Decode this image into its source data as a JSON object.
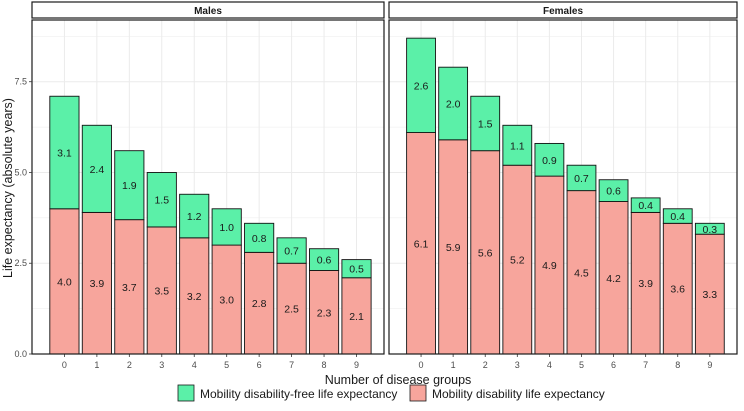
{
  "chart_data": {
    "type": "bar",
    "stacked": true,
    "xlabel": "Number of disease groups",
    "ylabel": "Life expectancy (absolute years)",
    "ylim": [
      0,
      9.2
    ],
    "yticks": [
      0.0,
      2.5,
      5.0,
      7.5
    ],
    "ytick_labels": [
      "0.0",
      "2.5",
      "5.0",
      "7.5"
    ],
    "categories": [
      "0",
      "1",
      "2",
      "3",
      "4",
      "5",
      "6",
      "7",
      "8",
      "9"
    ],
    "colors": {
      "free": "#5bf0a8",
      "disability": "#f7a59c",
      "grid": "#ebebeb",
      "bar_outline": "#111111"
    },
    "legend": {
      "position": "bottom",
      "items": [
        {
          "name": "Mobility disability-free life expectancy",
          "color": "#5bf0a8"
        },
        {
          "name": "Mobility disability life expectancy",
          "color": "#f7a59c"
        }
      ]
    },
    "panels": [
      {
        "title": "Males",
        "series": [
          {
            "name": "Mobility disability life expectancy",
            "values": [
              4.0,
              3.9,
              3.7,
              3.5,
              3.2,
              3.0,
              2.8,
              2.5,
              2.3,
              2.1
            ]
          },
          {
            "name": "Mobility disability-free life expectancy",
            "values": [
              3.1,
              2.4,
              1.9,
              1.5,
              1.2,
              1.0,
              0.8,
              0.7,
              0.6,
              0.5
            ]
          }
        ]
      },
      {
        "title": "Females",
        "series": [
          {
            "name": "Mobility disability life expectancy",
            "values": [
              6.1,
              5.9,
              5.6,
              5.2,
              4.9,
              4.5,
              4.2,
              3.9,
              3.6,
              3.3
            ]
          },
          {
            "name": "Mobility disability-free life expectancy",
            "values": [
              2.6,
              2.0,
              1.5,
              1.1,
              0.9,
              0.7,
              0.6,
              0.4,
              0.4,
              0.3
            ]
          }
        ]
      }
    ]
  }
}
